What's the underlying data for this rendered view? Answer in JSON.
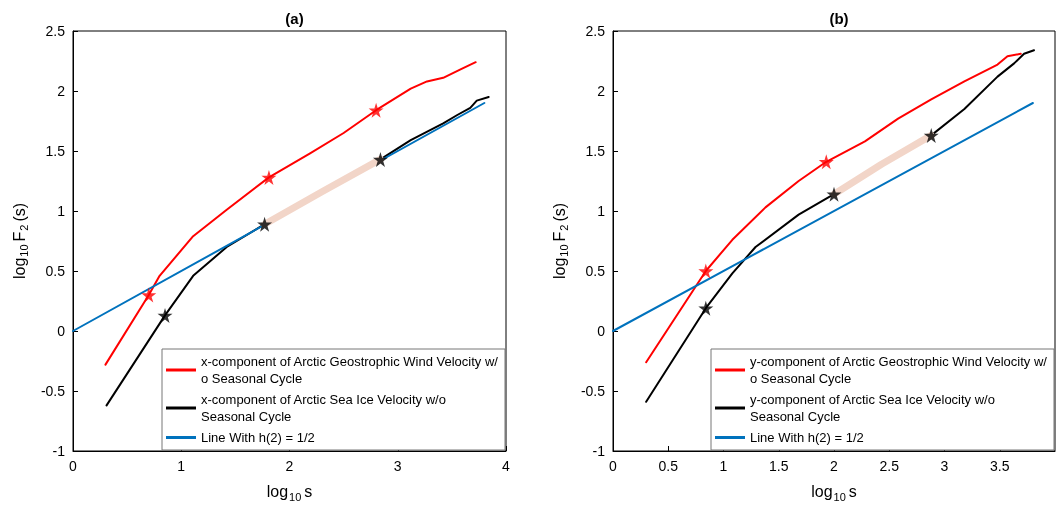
{
  "chart_data": [
    {
      "type": "line",
      "title": "(a)",
      "xlabel": "log$_{10}$s",
      "ylabel": "log$_{10}$F$_{2}$(s)",
      "xlim": [
        0,
        4
      ],
      "xticks": [
        0,
        1,
        2,
        3,
        4
      ],
      "ylim": [
        -1,
        2.5
      ],
      "yticks": [
        -1,
        -0.5,
        0,
        0.5,
        1,
        1.5,
        2,
        2.5
      ],
      "grid": false,
      "legend": "bottom right",
      "marker": "none",
      "line_style": "solid",
      "series": [
        {
          "name": "x-component of Arctic Geostrophic Wind Velocity w/o Seasonal Cycle",
          "color": "#ff0000",
          "x": [
            0.3,
            0.7,
            0.8,
            1.11,
            1.42,
            1.81,
            2.19,
            2.5,
            2.8,
            3.12,
            3.27,
            3.42,
            3.58,
            3.72
          ],
          "values": [
            -0.28,
            0.3,
            0.46,
            0.79,
            1.01,
            1.28,
            1.48,
            1.65,
            1.84,
            2.02,
            2.08,
            2.11,
            2.18,
            2.24
          ]
        },
        {
          "name": "x-component of Arctic Sea Ice Velocity w/o Seasonal Cycle",
          "color": "#000000",
          "x": [
            0.31,
            0.85,
            1.11,
            1.42,
            1.77,
            2.84,
            3.12,
            3.42,
            3.55,
            3.67,
            3.73,
            3.84
          ],
          "values": [
            -0.62,
            0.13,
            0.46,
            0.7,
            0.89,
            1.43,
            1.59,
            1.73,
            1.8,
            1.86,
            1.92,
            1.95
          ]
        },
        {
          "name": "Line With h(2) = 1/2",
          "color": "#0072bd",
          "x": [
            0,
            3.8
          ],
          "values": [
            0,
            1.9
          ]
        },
        {
          "color": "#f2d5c8",
          "x": [
            1.77,
            2.3,
            2.84
          ],
          "values": [
            0.89,
            1.16,
            1.43
          ]
        },
        {
          "type": "scatter",
          "marker": "star",
          "color": "#ff0000",
          "x": [
            0.7,
            1.81,
            2.8
          ],
          "values": [
            0.3,
            1.28,
            1.84
          ]
        },
        {
          "type": "scatter",
          "marker": "star",
          "color": "#000000",
          "x": [
            0.85,
            1.77,
            2.84
          ],
          "values": [
            0.13,
            0.89,
            1.43
          ]
        }
      ]
    },
    {
      "type": "line",
      "title": "(b)",
      "xlabel": "log$_{10}$s",
      "ylabel": "log$_{10}$F$_{2}$(s)",
      "xlim": [
        0,
        4
      ],
      "xticks": [
        0,
        0.5,
        1,
        1.5,
        2,
        2.5,
        3,
        3.5
      ],
      "ylim": [
        -1,
        2.5
      ],
      "yticks": [
        -1,
        -0.5,
        0,
        0.5,
        1,
        1.5,
        2,
        2.5
      ],
      "grid": false,
      "legend": "bottom right",
      "marker": "none",
      "line_style": "solid",
      "series": [
        {
          "name": "y-component of Arctic Geostrophic Wind Velocity w/o Seasonal Cycle",
          "color": "#ff0000",
          "x": [
            0.3,
            0.84,
            1.08,
            1.38,
            1.68,
            1.93,
            2.28,
            2.58,
            2.88,
            3.18,
            3.48,
            3.57,
            3.69
          ],
          "values": [
            -0.26,
            0.5,
            0.76,
            1.03,
            1.25,
            1.41,
            1.58,
            1.77,
            1.93,
            2.08,
            2.22,
            2.29,
            2.31
          ]
        },
        {
          "name": "y-component of Arctic Sea Ice Velocity w/o Seasonal Cycle",
          "color": "#000000",
          "x": [
            0.3,
            0.84,
            1.08,
            1.29,
            1.68,
            2.0,
            2.88,
            3.18,
            3.48,
            3.63,
            3.72,
            3.81
          ],
          "values": [
            -0.59,
            0.19,
            0.48,
            0.7,
            0.97,
            1.14,
            1.63,
            1.85,
            2.12,
            2.23,
            2.31,
            2.34
          ]
        },
        {
          "name": "Line With h(2) = 1/2",
          "color": "#0072bd",
          "x": [
            0,
            3.8
          ],
          "values": [
            0,
            1.9
          ]
        },
        {
          "color": "#f2d5c8",
          "x": [
            2.0,
            2.43,
            2.88
          ],
          "values": [
            1.14,
            1.39,
            1.63
          ]
        },
        {
          "type": "scatter",
          "marker": "star",
          "color": "#ff0000",
          "x": [
            0.84,
            1.93
          ],
          "values": [
            0.5,
            1.41
          ]
        },
        {
          "type": "scatter",
          "marker": "star",
          "color": "#000000",
          "x": [
            0.84,
            2.0,
            2.88
          ],
          "values": [
            0.19,
            1.14,
            1.63
          ]
        }
      ]
    }
  ]
}
